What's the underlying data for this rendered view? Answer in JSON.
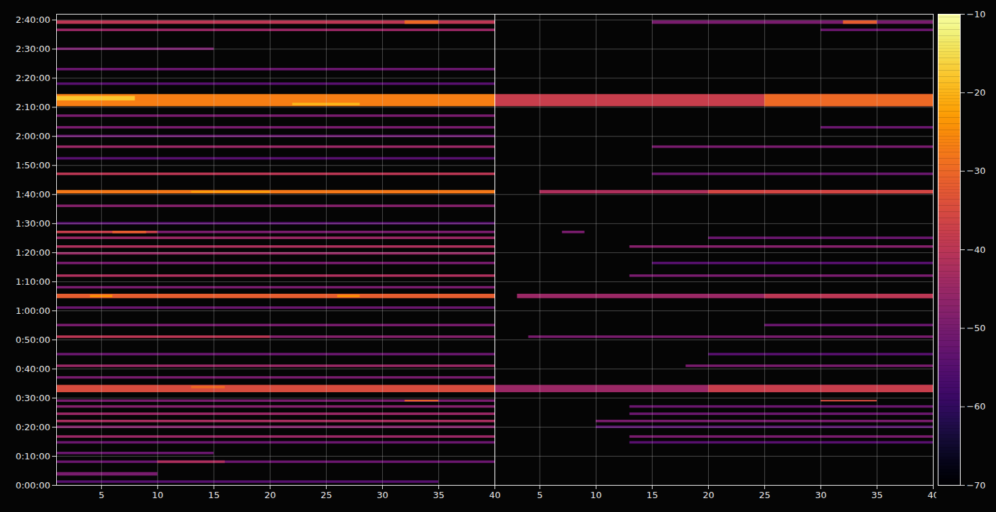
{
  "chart_data": {
    "type": "heatmap",
    "color": "inferno",
    "grid": true,
    "xlim": [
      1,
      40
    ],
    "xticks": [
      5,
      10,
      15,
      20,
      25,
      30,
      35,
      40
    ],
    "ylim": [
      0,
      9720
    ],
    "yticks": [
      {
        "value": 0,
        "label": "0:00:00"
      },
      {
        "value": 600,
        "label": "0:10:00"
      },
      {
        "value": 1200,
        "label": "0:20:00"
      },
      {
        "value": 1800,
        "label": "0:30:00"
      },
      {
        "value": 2400,
        "label": "0:40:00"
      },
      {
        "value": 3000,
        "label": "0:50:00"
      },
      {
        "value": 3600,
        "label": "1:00:00"
      },
      {
        "value": 4200,
        "label": "1:10:00"
      },
      {
        "value": 4800,
        "label": "1:20:00"
      },
      {
        "value": 5400,
        "label": "1:30:00"
      },
      {
        "value": 6000,
        "label": "1:40:00"
      },
      {
        "value": 6600,
        "label": "1:50:00"
      },
      {
        "value": 7200,
        "label": "2:00:00"
      },
      {
        "value": 7800,
        "label": "2:10:00"
      },
      {
        "value": 8400,
        "label": "2:20:00"
      },
      {
        "value": 9000,
        "label": "2:30:00"
      },
      {
        "value": 9600,
        "label": "2:40:00"
      }
    ],
    "colorbar": {
      "range": [
        -70,
        -10
      ],
      "ticks": [
        -70,
        -60,
        -50,
        -40,
        -30,
        -20,
        -10
      ]
    },
    "panels": [
      {
        "cells": [
          {
            "x": [
              1,
              35
            ],
            "y": [
              30,
              110
            ],
            "value": -55
          },
          {
            "x": [
              1,
              10
            ],
            "y": [
              180,
              280
            ],
            "value": -50
          },
          {
            "x": [
              1,
              40
            ],
            "y": [
              440,
              520
            ],
            "value": -52
          },
          {
            "x": [
              10,
              16
            ],
            "y": [
              440,
              520
            ],
            "value": -42
          },
          {
            "x": [
              1,
              15
            ],
            "y": [
              620,
              700
            ],
            "value": -52
          },
          {
            "x": [
              1,
              40
            ],
            "y": [
              840,
              920
            ],
            "value": -52
          },
          {
            "x": [
              1,
              40
            ],
            "y": [
              960,
              1040
            ],
            "value": -45
          },
          {
            "x": [
              1,
              40
            ],
            "y": [
              1160,
              1240
            ],
            "value": -48
          },
          {
            "x": [
              1,
              40
            ],
            "y": [
              1280,
              1360
            ],
            "value": -43
          },
          {
            "x": [
              1,
              40
            ],
            "y": [
              1430,
              1510
            ],
            "value": -45
          },
          {
            "x": [
              1,
              40
            ],
            "y": [
              1580,
              1660
            ],
            "value": -48
          },
          {
            "x": [
              1,
              40
            ],
            "y": [
              1700,
              1780
            ],
            "value": -50
          },
          {
            "x": [
              32,
              35
            ],
            "y": [
              1710,
              1770
            ],
            "value": -30
          },
          {
            "x": [
              1,
              40
            ],
            "y": [
              1900,
              2080
            ],
            "value": -35
          },
          {
            "x": [
              13,
              16
            ],
            "y": [
              1980,
              2060
            ],
            "value": -30
          },
          {
            "x": [
              1,
              40
            ],
            "y": [
              2180,
              2260
            ],
            "value": -50
          },
          {
            "x": [
              1,
              40
            ],
            "y": [
              2420,
              2500
            ],
            "value": -45
          },
          {
            "x": [
              1,
              40
            ],
            "y": [
              2660,
              2740
            ],
            "value": -52
          },
          {
            "x": [
              1,
              20
            ],
            "y": [
              3020,
              3100
            ],
            "value": -40
          },
          {
            "x": [
              20,
              40
            ],
            "y": [
              3020,
              3100
            ],
            "value": -48
          },
          {
            "x": [
              1,
              40
            ],
            "y": [
              3260,
              3340
            ],
            "value": -50
          },
          {
            "x": [
              1,
              40
            ],
            "y": [
              3620,
              3700
            ],
            "value": -52
          },
          {
            "x": [
              1,
              40
            ],
            "y": [
              3840,
              3960
            ],
            "value": -32
          },
          {
            "x": [
              4,
              6
            ],
            "y": [
              3860,
              3940
            ],
            "value": -25
          },
          {
            "x": [
              26,
              28
            ],
            "y": [
              3860,
              3940
            ],
            "value": -25
          },
          {
            "x": [
              1,
              40
            ],
            "y": [
              4040,
              4120
            ],
            "value": -50
          },
          {
            "x": [
              1,
              40
            ],
            "y": [
              4280,
              4360
            ],
            "value": -42
          },
          {
            "x": [
              1,
              40
            ],
            "y": [
              4540,
              4620
            ],
            "value": -50
          },
          {
            "x": [
              1,
              40
            ],
            "y": [
              4740,
              4820
            ],
            "value": -45
          },
          {
            "x": [
              1,
              40
            ],
            "y": [
              4880,
              4960
            ],
            "value": -42
          },
          {
            "x": [
              1,
              40
            ],
            "y": [
              5060,
              5140
            ],
            "value": -45
          },
          {
            "x": [
              1,
              10
            ],
            "y": [
              5180,
              5260
            ],
            "value": -38
          },
          {
            "x": [
              6,
              9
            ],
            "y": [
              5180,
              5260
            ],
            "value": -32
          },
          {
            "x": [
              10,
              40
            ],
            "y": [
              5180,
              5260
            ],
            "value": -50
          },
          {
            "x": [
              1,
              40
            ],
            "y": [
              5360,
              5440
            ],
            "value": -55
          },
          {
            "x": [
              1,
              40
            ],
            "y": [
              5720,
              5800
            ],
            "value": -48
          },
          {
            "x": [
              1,
              40
            ],
            "y": [
              6000,
              6100
            ],
            "value": -28
          },
          {
            "x": [
              13,
              20
            ],
            "y": [
              6020,
              6080
            ],
            "value": -22
          },
          {
            "x": [
              1,
              40
            ],
            "y": [
              6380,
              6460
            ],
            "value": -40
          },
          {
            "x": [
              1,
              40
            ],
            "y": [
              6700,
              6780
            ],
            "value": -55
          },
          {
            "x": [
              1,
              40
            ],
            "y": [
              6940,
              7020
            ],
            "value": -45
          },
          {
            "x": [
              1,
              40
            ],
            "y": [
              7160,
              7240
            ],
            "value": -52
          },
          {
            "x": [
              1,
              40
            ],
            "y": [
              7340,
              7420
            ],
            "value": -50
          },
          {
            "x": [
              1,
              40
            ],
            "y": [
              7580,
              7660
            ],
            "value": -50
          },
          {
            "x": [
              1,
              40
            ],
            "y": [
              7800,
              8080
            ],
            "value": -27
          },
          {
            "x": [
              1,
              8
            ],
            "y": [
              7920,
              8040
            ],
            "value": -18
          },
          {
            "x": [
              22,
              28
            ],
            "y": [
              7820,
              7900
            ],
            "value": -20
          },
          {
            "x": [
              1,
              40
            ],
            "y": [
              8240,
              8320
            ],
            "value": -55
          },
          {
            "x": [
              1,
              40
            ],
            "y": [
              8540,
              8620
            ],
            "value": -52
          },
          {
            "x": [
              1,
              15
            ],
            "y": [
              8960,
              9040
            ],
            "value": -50
          },
          {
            "x": [
              1,
              40
            ],
            "y": [
              9350,
              9430
            ],
            "value": -45
          },
          {
            "x": [
              1,
              40
            ],
            "y": [
              9500,
              9600
            ],
            "value": -40
          },
          {
            "x": [
              32,
              35
            ],
            "y": [
              9500,
              9600
            ],
            "value": -30
          }
        ]
      },
      {
        "cells": [
          {
            "x": [
              13,
              40
            ],
            "y": [
              840,
              920
            ],
            "value": -55
          },
          {
            "x": [
              13,
              40
            ],
            "y": [
              960,
              1040
            ],
            "value": -50
          },
          {
            "x": [
              10,
              40
            ],
            "y": [
              1160,
              1240
            ],
            "value": -55
          },
          {
            "x": [
              10,
              40
            ],
            "y": [
              1280,
              1360
            ],
            "value": -50
          },
          {
            "x": [
              13,
              40
            ],
            "y": [
              1430,
              1510
            ],
            "value": -52
          },
          {
            "x": [
              13,
              40
            ],
            "y": [
              1580,
              1660
            ],
            "value": -52
          },
          {
            "x": [
              30,
              35
            ],
            "y": [
              1710,
              1770
            ],
            "value": -35
          },
          {
            "x": [
              1,
              40
            ],
            "y": [
              1900,
              2080
            ],
            "value": -45
          },
          {
            "x": [
              20,
              40
            ],
            "y": [
              1900,
              2080
            ],
            "value": -38
          },
          {
            "x": [
              18,
              40
            ],
            "y": [
              2420,
              2500
            ],
            "value": -50
          },
          {
            "x": [
              20,
              40
            ],
            "y": [
              2660,
              2740
            ],
            "value": -55
          },
          {
            "x": [
              4,
              40
            ],
            "y": [
              3020,
              3100
            ],
            "value": -50
          },
          {
            "x": [
              25,
              40
            ],
            "y": [
              3260,
              3340
            ],
            "value": -52
          },
          {
            "x": [
              3,
              40
            ],
            "y": [
              3840,
              3960
            ],
            "value": -45
          },
          {
            "x": [
              25,
              40
            ],
            "y": [
              3840,
              3960
            ],
            "value": -40
          },
          {
            "x": [
              13,
              40
            ],
            "y": [
              4280,
              4360
            ],
            "value": -50
          },
          {
            "x": [
              15,
              40
            ],
            "y": [
              4540,
              4620
            ],
            "value": -55
          },
          {
            "x": [
              13,
              40
            ],
            "y": [
              4880,
              4960
            ],
            "value": -48
          },
          {
            "x": [
              20,
              40
            ],
            "y": [
              5060,
              5140
            ],
            "value": -52
          },
          {
            "x": [
              7,
              9
            ],
            "y": [
              5180,
              5260
            ],
            "value": -50
          },
          {
            "x": [
              5,
              40
            ],
            "y": [
              6000,
              6100
            ],
            "value": -42
          },
          {
            "x": [
              20,
              40
            ],
            "y": [
              6000,
              6100
            ],
            "value": -36
          },
          {
            "x": [
              15,
              40
            ],
            "y": [
              6380,
              6460
            ],
            "value": -52
          },
          {
            "x": [
              15,
              40
            ],
            "y": [
              6940,
              7020
            ],
            "value": -50
          },
          {
            "x": [
              30,
              40
            ],
            "y": [
              7340,
              7420
            ],
            "value": -52
          },
          {
            "x": [
              1,
              40
            ],
            "y": [
              7800,
              8080
            ],
            "value": -38
          },
          {
            "x": [
              25,
              40
            ],
            "y": [
              7800,
              8080
            ],
            "value": -30
          },
          {
            "x": [
              30,
              40
            ],
            "y": [
              9350,
              9430
            ],
            "value": -52
          },
          {
            "x": [
              15,
              40
            ],
            "y": [
              9500,
              9600
            ],
            "value": -50
          },
          {
            "x": [
              32,
              35
            ],
            "y": [
              9500,
              9600
            ],
            "value": -32
          }
        ]
      }
    ]
  }
}
